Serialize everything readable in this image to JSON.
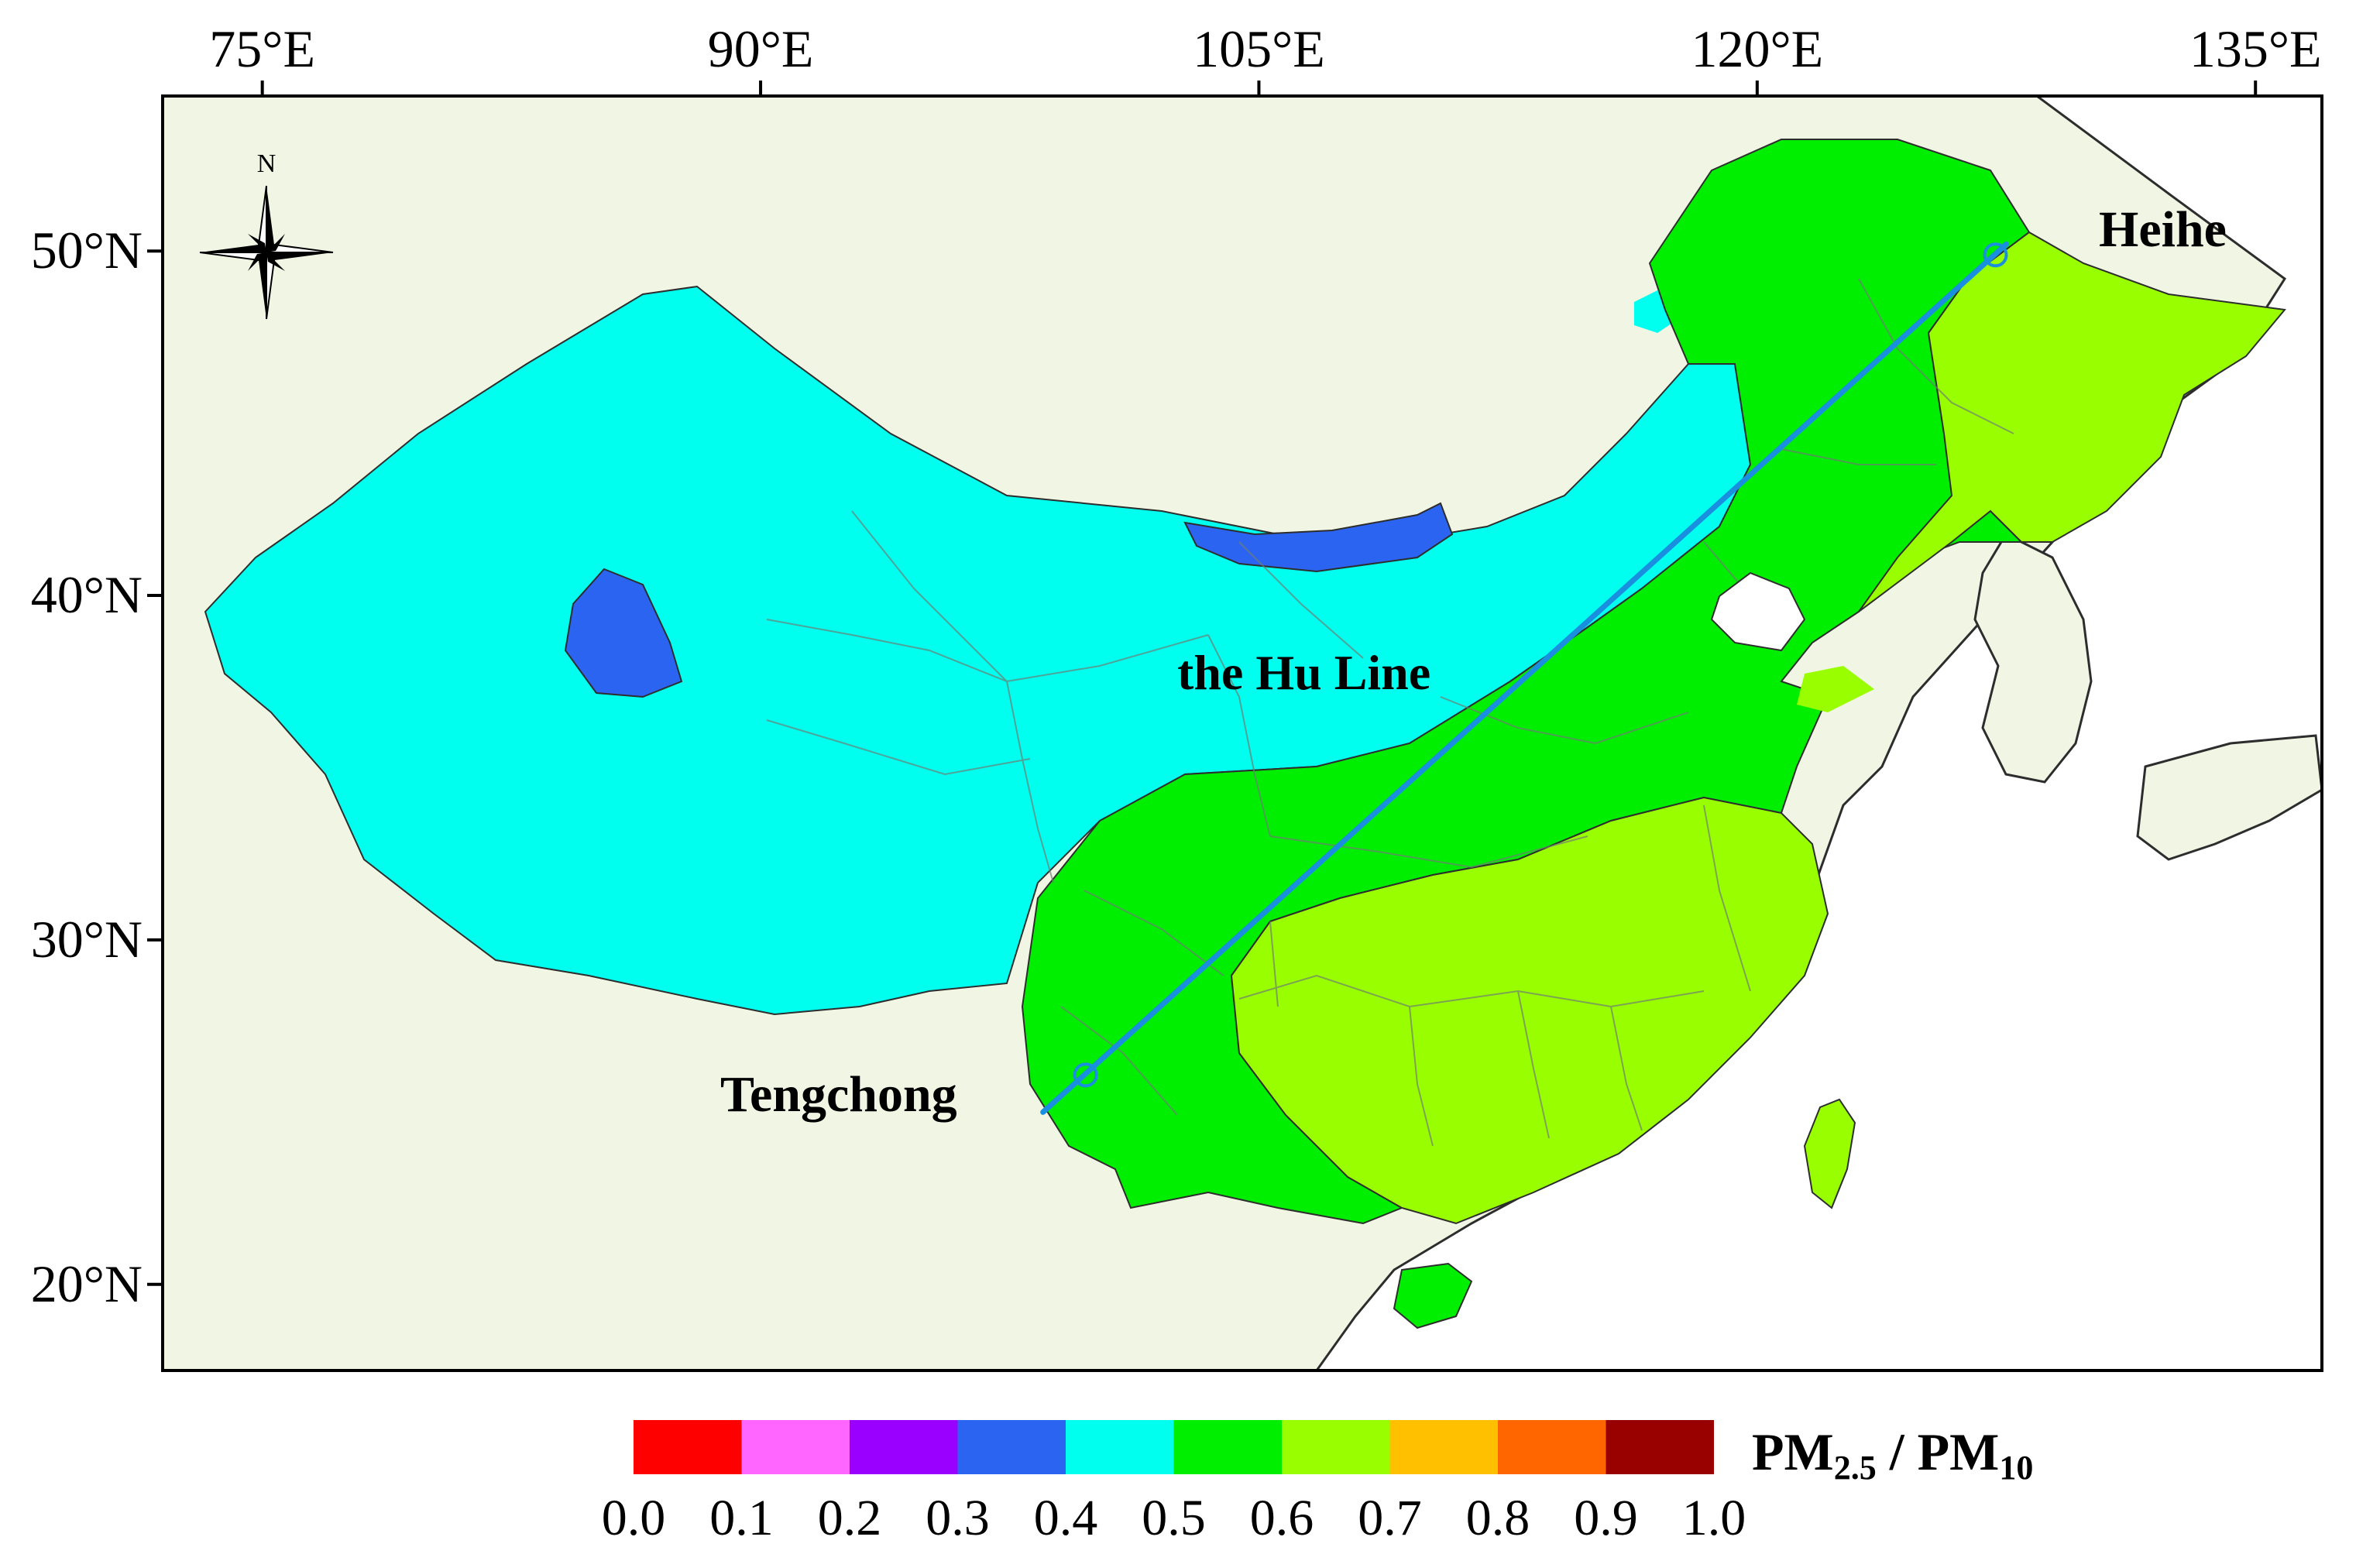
{
  "map": {
    "lon_axis": {
      "range": [
        72,
        137
      ],
      "ticks": [
        {
          "value": 75,
          "label": "75°E"
        },
        {
          "value": 90,
          "label": "90°E"
        },
        {
          "value": 105,
          "label": "105°E"
        },
        {
          "value": 120,
          "label": "120°E"
        },
        {
          "value": 135,
          "label": "135°E"
        }
      ]
    },
    "lat_axis": {
      "range": [
        17.5,
        54.5
      ],
      "ticks": [
        {
          "value": 50,
          "label": "50°N"
        },
        {
          "value": 40,
          "label": "40°N"
        },
        {
          "value": 30,
          "label": "30°N"
        },
        {
          "value": 20,
          "label": "20°N"
        }
      ]
    },
    "compass": {
      "label": "N",
      "icon": "north-arrow-compass-icon"
    },
    "hu_line": {
      "label": "the Hu Line",
      "color": "#1a8fe0",
      "start": {
        "name": "Tengchong",
        "lon": 98.5,
        "lat": 25.0
      },
      "end": {
        "name": "Heihe",
        "lon": 127.5,
        "lat": 50.2
      }
    },
    "place_labels": [
      {
        "name": "Heihe"
      },
      {
        "name": "Tengchong"
      }
    ],
    "colors": {
      "land": "#f0f6e3",
      "sea": "#ffffff",
      "border": "#2d2d2d"
    }
  },
  "legend": {
    "title": "PM2.5 / PM10",
    "title_parts": [
      {
        "t": "PM",
        "sub": "2.5"
      },
      {
        "t": " / ",
        "sub": ""
      },
      {
        "t": "PM",
        "sub": "10"
      }
    ],
    "bins": [
      {
        "from": 0.0,
        "to": 0.1,
        "color": "#ff0000"
      },
      {
        "from": 0.1,
        "to": 0.2,
        "color": "#ff66ff"
      },
      {
        "from": 0.2,
        "to": 0.3,
        "color": "#9900ff"
      },
      {
        "from": 0.3,
        "to": 0.4,
        "color": "#2b64f0"
      },
      {
        "from": 0.4,
        "to": 0.5,
        "color": "#00ffee"
      },
      {
        "from": 0.5,
        "to": 0.6,
        "color": "#00ee00"
      },
      {
        "from": 0.6,
        "to": 0.7,
        "color": "#99ff00"
      },
      {
        "from": 0.7,
        "to": 0.8,
        "color": "#ffc000"
      },
      {
        "from": 0.8,
        "to": 0.9,
        "color": "#ff6600"
      },
      {
        "from": 0.9,
        "to": 1.0,
        "color": "#990000"
      }
    ],
    "tick_labels": [
      "0.0",
      "0.1",
      "0.2",
      "0.3",
      "0.4",
      "0.5",
      "0.6",
      "0.7",
      "0.8",
      "0.9",
      "1.0"
    ]
  },
  "chart_data": {
    "type": "heatmap",
    "variable": "PM2.5 / PM10",
    "value_range": [
      0.0,
      1.0
    ],
    "regions": [
      {
        "class": "0.3-0.4",
        "color": "#2b64f0",
        "approx_center": {
          "lon": 84.5,
          "lat": 39.0
        }
      },
      {
        "class": "0.3-0.4",
        "color": "#2b64f0",
        "approx_center": {
          "lon": 106.0,
          "lat": 41.7
        }
      },
      {
        "class": "0.4-0.5",
        "color": "#00ffee",
        "approx_center": {
          "lon": 92.0,
          "lat": 37.0
        }
      },
      {
        "class": "0.5-0.6",
        "color": "#00ee00",
        "approx_center": {
          "lon": 112.0,
          "lat": 33.0
        }
      },
      {
        "class": "0.6-0.7",
        "color": "#99ff00",
        "approx_center": {
          "lon": 125.0,
          "lat": 46.0
        }
      },
      {
        "class": "0.6-0.7",
        "color": "#99ff00",
        "approx_center": {
          "lon": 114.0,
          "lat": 27.0
        }
      }
    ]
  }
}
